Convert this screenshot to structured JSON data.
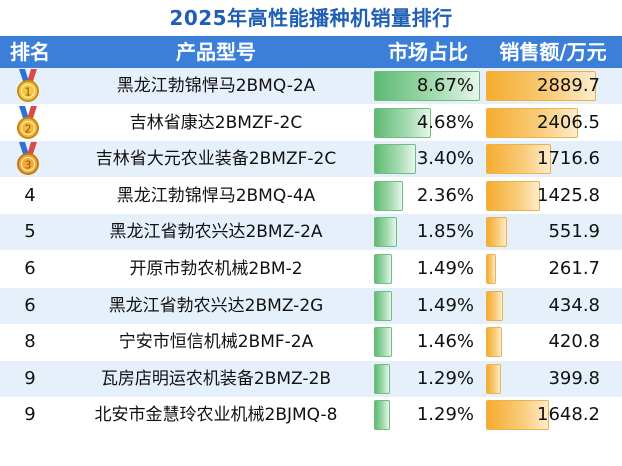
{
  "chart_data": {
    "type": "table",
    "title": "2025年高性能播种机销量排行",
    "columns": [
      "排名",
      "产品型号",
      "市场占比",
      "销售额/万元"
    ],
    "rows": [
      {
        "rank": "1",
        "medal": "gold-medal-icon",
        "product": "黑龙江勃锦悍马2BMQ-2A",
        "share": 8.67,
        "share_label": "8.67%",
        "sales": 2889.7,
        "sales_label": "2889.7"
      },
      {
        "rank": "2",
        "medal": "silver-medal-icon",
        "product": "吉林省康达2BMZF-2C",
        "share": 4.68,
        "share_label": "4.68%",
        "sales": 2406.5,
        "sales_label": "2406.5"
      },
      {
        "rank": "3",
        "medal": "bronze-medal-icon",
        "product": "吉林省大元农业装备2BMZF-2C",
        "share": 3.4,
        "share_label": "3.40%",
        "sales": 1716.6,
        "sales_label": "1716.6"
      },
      {
        "rank": "4",
        "product": "黑龙江勃锦悍马2BMQ-4A",
        "share": 2.36,
        "share_label": "2.36%",
        "sales": 1425.8,
        "sales_label": "1425.8"
      },
      {
        "rank": "5",
        "product": "黑龙江省勃农兴达2BMZ-2A",
        "share": 1.85,
        "share_label": "1.85%",
        "sales": 551.9,
        "sales_label": "551.9"
      },
      {
        "rank": "6",
        "product": "开原市勃农机械2BM-2",
        "share": 1.49,
        "share_label": "1.49%",
        "sales": 261.7,
        "sales_label": "261.7"
      },
      {
        "rank": "6",
        "product": "黑龙江省勃农兴达2BMZ-2G",
        "share": 1.49,
        "share_label": "1.49%",
        "sales": 434.8,
        "sales_label": "434.8"
      },
      {
        "rank": "8",
        "product": "宁安市恒信机械2BMF-2A",
        "share": 1.46,
        "share_label": "1.46%",
        "sales": 420.8,
        "sales_label": "420.8"
      },
      {
        "rank": "9",
        "product": "瓦房店明运农机装备2BMZ-2B",
        "share": 1.29,
        "share_label": "1.29%",
        "sales": 399.8,
        "sales_label": "399.8"
      },
      {
        "rank": "9",
        "product": "北安市金慧玲农业机械2BJMQ-8",
        "share": 1.29,
        "share_label": "1.29%",
        "sales": 1648.2,
        "sales_label": "1648.2"
      }
    ],
    "share_max": 8.67,
    "sales_max": 2889.7
  },
  "colors": {
    "title": "#1f5fb5",
    "header_bg": "#3b7fd8",
    "share_bar": "#5fba73",
    "sales_bar": "#f5ac2e",
    "alt_row": "#e6f0fb"
  }
}
